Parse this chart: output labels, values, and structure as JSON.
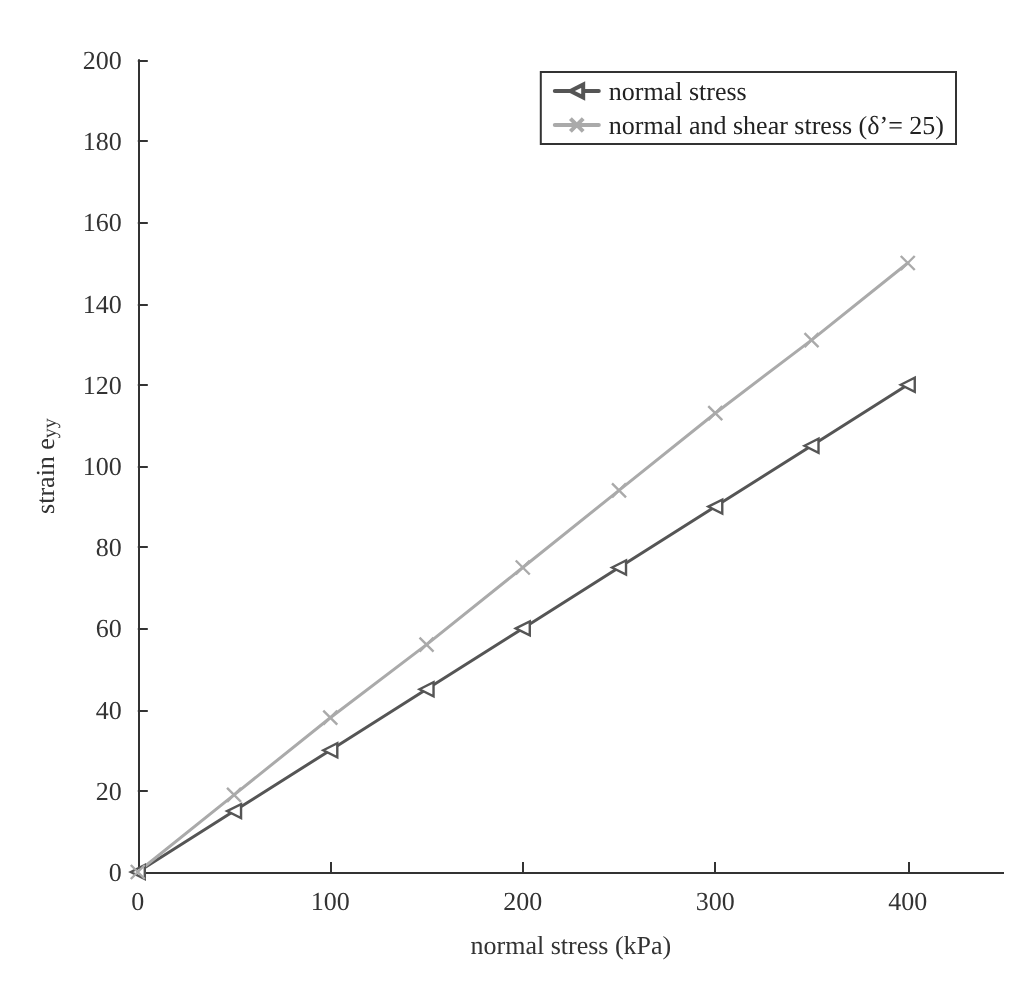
{
  "chart_data": {
    "type": "line",
    "xlabel": "normal stress (kPa)",
    "ylabel": "strain e$_{yy}$",
    "x": [
      0,
      50,
      100,
      150,
      200,
      250,
      300,
      350,
      400
    ],
    "series": [
      {
        "name": "normal stress",
        "color": "#555555",
        "marker": "triangle",
        "values": [
          0,
          15,
          30,
          45,
          60,
          75,
          90,
          105,
          120
        ]
      },
      {
        "name": "normal and shear stress (δ’= 25)",
        "color": "#aaaaaa",
        "marker": "cross",
        "values": [
          0,
          19,
          38,
          56,
          75,
          94,
          113,
          131,
          150
        ]
      }
    ],
    "xlim": [
      0,
      450
    ],
    "xticks": [
      0,
      100,
      200,
      300,
      400
    ],
    "ylim": [
      0,
      200
    ],
    "yticks": [
      0,
      20,
      40,
      60,
      80,
      100,
      120,
      140,
      160,
      180,
      200
    ],
    "grid": false,
    "legend": "top right",
    "line_style": "solid"
  }
}
